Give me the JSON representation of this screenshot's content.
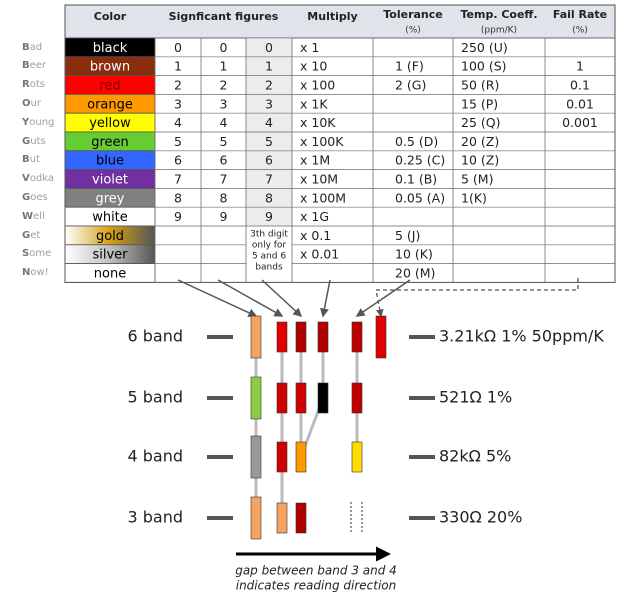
{
  "table": {
    "headers": [
      "Color",
      "Signficant figures",
      "Multiply",
      "Tolerance",
      "Temp. Coeff.",
      "Fail Rate"
    ],
    "subheaders": {
      "tolerance": "(%)",
      "temp": "(ppm/K)",
      "fail": "(%)"
    },
    "note": [
      "3th digit",
      "only for",
      "5 and 6",
      "bands"
    ],
    "rows": [
      {
        "mnemonic": "Bad",
        "color": "black",
        "swatch": "#000000",
        "ink": "#ffffff",
        "d1": "0",
        "d2": "0",
        "d3": "0",
        "mult": "x 1",
        "temp": "250 (U)"
      },
      {
        "mnemonic": "Beer",
        "color": "brown",
        "swatch": "#8b2d0c",
        "ink": "#ffffff",
        "d1": "1",
        "d2": "1",
        "d3": "1",
        "mult": "x 10",
        "tol": "1 (F)",
        "temp": "100 (S)",
        "fail": "1"
      },
      {
        "mnemonic": "Rots",
        "color": "red",
        "swatch": "#ff0000",
        "ink": "#7a0000",
        "d1": "2",
        "d2": "2",
        "d3": "2",
        "mult": "x 100",
        "tol": "2 (G)",
        "temp": "50 (R)",
        "fail": "0.1"
      },
      {
        "mnemonic": "Our",
        "color": "orange",
        "swatch": "#ff9900",
        "ink": "#000000",
        "d1": "3",
        "d2": "3",
        "d3": "3",
        "mult": "x 1K",
        "temp": "15 (P)",
        "fail": "0.01"
      },
      {
        "mnemonic": "Young",
        "color": "yellow",
        "swatch": "#ffff00",
        "ink": "#000000",
        "d1": "4",
        "d2": "4",
        "d3": "4",
        "mult": "x 10K",
        "temp": "25 (Q)",
        "fail": "0.001"
      },
      {
        "mnemonic": "Guts",
        "color": "green",
        "swatch": "#66cc33",
        "ink": "#000000",
        "d1": "5",
        "d2": "5",
        "d3": "5",
        "mult": "x 100K",
        "tol": "0.5 (D)",
        "temp": "20 (Z)"
      },
      {
        "mnemonic": "But",
        "color": "blue",
        "swatch": "#3366ff",
        "ink": "#000000",
        "d1": "6",
        "d2": "6",
        "d3": "6",
        "mult": "x 1M",
        "tol": "0.25 (C)",
        "temp": "10 (Z)"
      },
      {
        "mnemonic": "Vodka",
        "color": "violet",
        "swatch": "#7030a0",
        "ink": "#ffffff",
        "d1": "7",
        "d2": "7",
        "d3": "7",
        "mult": "x 10M",
        "tol": "0.1 (B)",
        "temp": "5 (M)"
      },
      {
        "mnemonic": "Goes",
        "color": "grey",
        "swatch": "#808080",
        "ink": "#ffffff",
        "d1": "8",
        "d2": "8",
        "d3": "8",
        "mult": "x 100M",
        "tol": "0.05 (A)",
        "temp": "1(K)"
      },
      {
        "mnemonic": "Well",
        "color": "white",
        "swatch": "#ffffff",
        "ink": "#000000",
        "d1": "9",
        "d2": "9",
        "d3": "9",
        "mult": "x 1G"
      },
      {
        "mnemonic": "Get",
        "color": "gold",
        "swatch": "#d4a017",
        "ink": "#000000",
        "mult": "x 0.1",
        "tol": "5 (J)"
      },
      {
        "mnemonic": "Some",
        "color": "silver",
        "swatch": "#c0c0c0",
        "ink": "#000000",
        "mult": "x 0.01",
        "tol": "10 (K)"
      },
      {
        "mnemonic": "Now!",
        "color": "none",
        "swatch": "#ffffff",
        "ink": "#000000",
        "tol": "20 (M)"
      }
    ]
  },
  "resistors": [
    {
      "label": "6 band",
      "value": "3.21kΩ 1% 50ppm/K"
    },
    {
      "label": "5 band",
      "value": "521Ω 1%"
    },
    {
      "label": "4 band",
      "value": "82kΩ 5%"
    },
    {
      "label": "3 band",
      "value": "330Ω 20%"
    }
  ],
  "caption": [
    "gap between band 3 and 4",
    "indicates reading direction"
  ]
}
